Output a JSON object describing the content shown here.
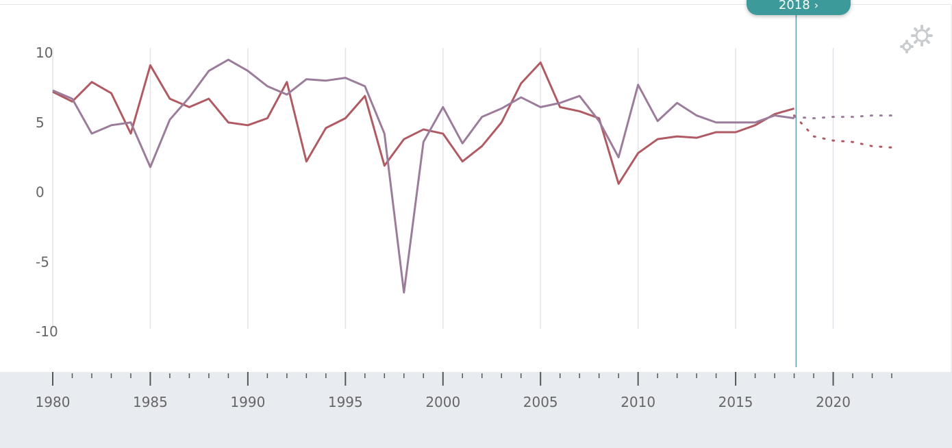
{
  "chart_data": {
    "type": "line",
    "x": [
      1980,
      1981,
      1982,
      1983,
      1984,
      1985,
      1986,
      1987,
      1988,
      1989,
      1990,
      1991,
      1992,
      1993,
      1994,
      1995,
      1996,
      1997,
      1998,
      1999,
      2000,
      2001,
      2002,
      2003,
      2004,
      2005,
      2006,
      2007,
      2008,
      2009,
      2010,
      2011,
      2012,
      2013,
      2014,
      2015,
      2016,
      2017,
      2018
    ],
    "series": [
      {
        "color": "#b05b63",
        "values": [
          7.2,
          6.5,
          7.9,
          7.1,
          4.2,
          9.1,
          6.7,
          6.1,
          6.7,
          5.0,
          4.8,
          5.3,
          7.9,
          2.2,
          4.6,
          5.3,
          6.9,
          1.9,
          3.8,
          4.5,
          4.2,
          2.2,
          3.3,
          5.0,
          7.8,
          9.3,
          6.1,
          5.8,
          5.3,
          0.6,
          2.8,
          3.8,
          4.0,
          3.9,
          4.3,
          4.3,
          4.8,
          5.6,
          6.0
        ],
        "projection": {
          "x": [
            2018,
            2019,
            2020,
            2021,
            2022,
            2023
          ],
          "values": [
            5.5,
            4.0,
            3.7,
            3.6,
            3.3,
            3.2
          ]
        }
      },
      {
        "color": "#9b7c9b",
        "values": [
          7.3,
          6.7,
          4.2,
          4.8,
          5.0,
          1.8,
          5.2,
          6.8,
          8.7,
          9.5,
          8.7,
          7.6,
          7.0,
          8.1,
          8.0,
          8.2,
          7.6,
          4.2,
          -7.2,
          3.6,
          6.1,
          3.5,
          5.4,
          6.0,
          6.8,
          6.1,
          6.4,
          6.9,
          5.1,
          2.5,
          7.7,
          5.1,
          6.4,
          5.5,
          5.0,
          5.0,
          5.0,
          5.5,
          5.3
        ],
        "projection": {
          "x": [
            2018,
            2019,
            2020,
            2021,
            2022,
            2023
          ],
          "values": [
            5.4,
            5.3,
            5.4,
            5.4,
            5.5,
            5.5
          ]
        }
      }
    ],
    "yticks": [
      "10",
      "5",
      "0",
      "-5",
      "-10"
    ],
    "ytick_values": [
      10,
      5,
      0,
      -5,
      -10
    ],
    "ylim": [
      -10,
      10
    ],
    "xlim": [
      1980,
      2023
    ],
    "year_labels": [
      "1980",
      "1985",
      "1990",
      "1995",
      "2000",
      "2005",
      "2010",
      "2015",
      "2020"
    ],
    "gridlines": "vertical every 5 years",
    "current_marker_year": 2018,
    "title": "",
    "xlabel": "",
    "ylabel": ""
  },
  "marker": {
    "label": "2018",
    "arrow": "›"
  },
  "colors": {
    "accent": "#3c9a9a",
    "grid": "#e2e2ea",
    "band": "#e8ebef",
    "marker_line": "#5f9aa8"
  },
  "icons": {
    "settings": "gear-icon"
  }
}
